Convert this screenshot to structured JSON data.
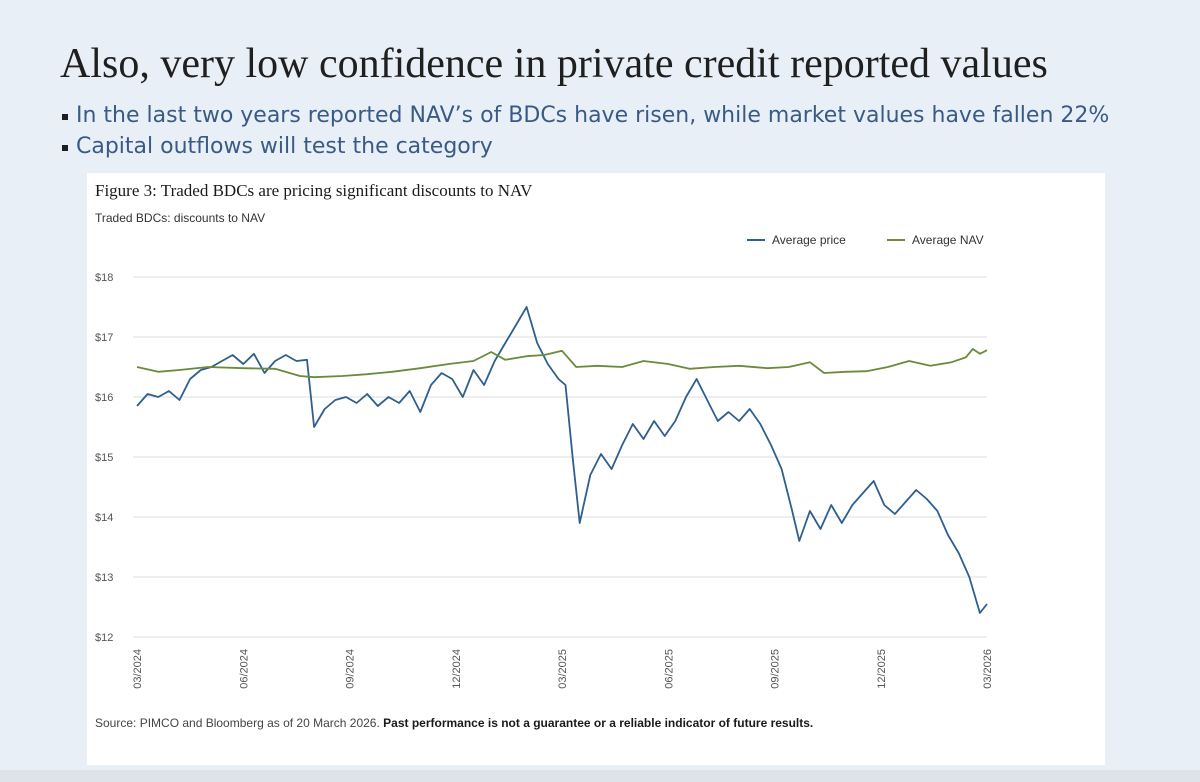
{
  "slide": {
    "title": "Also, very low confidence in private credit reported values",
    "bullets": [
      "In the last two years reported NAV’s of BDCs have risen, while market values have fallen 22%",
      "Capital outflows will test the category"
    ]
  },
  "colors": {
    "price": "#2e5f8f",
    "nav": "#6a8a3c",
    "grid": "#dcdcdc",
    "axis_text": "#555555"
  },
  "source": {
    "prefix": "Source: PIMCO and Bloomberg as of 20 March 2026.",
    "bold": "Past performance is not a guarantee or a reliable indicator of future results."
  },
  "chart_data": {
    "type": "line",
    "title": "Figure 3: Traded BDCs are pricing significant discounts to NAV",
    "subtitle": "Traded BDCs: discounts to NAV",
    "ylim": [
      12,
      18
    ],
    "y_ticks": [
      18,
      17,
      16,
      15,
      14,
      13,
      12
    ],
    "y_tick_labels": [
      "$18",
      "$17",
      "$16",
      "$15",
      "$14",
      "$13",
      "$12"
    ],
    "x_ticks": [
      0,
      3,
      6,
      9,
      12,
      15,
      18,
      21,
      24
    ],
    "x_tick_labels": [
      "03/2024",
      "06/2024",
      "09/2024",
      "12/2024",
      "03/2025",
      "06/2025",
      "09/2025",
      "12/2025",
      "03/2026"
    ],
    "x_unit": "months since 03/2024",
    "grid": "horizontal",
    "legend_position": "top-right",
    "series": [
      {
        "name": "Average price",
        "color": "#2e5f8f",
        "points": [
          [
            0.0,
            15.85
          ],
          [
            0.3,
            16.05
          ],
          [
            0.6,
            16.0
          ],
          [
            0.9,
            16.1
          ],
          [
            1.2,
            15.95
          ],
          [
            1.5,
            16.3
          ],
          [
            1.8,
            16.45
          ],
          [
            2.1,
            16.5
          ],
          [
            2.4,
            16.6
          ],
          [
            2.7,
            16.7
          ],
          [
            3.0,
            16.55
          ],
          [
            3.3,
            16.72
          ],
          [
            3.6,
            16.4
          ],
          [
            3.9,
            16.6
          ],
          [
            4.2,
            16.7
          ],
          [
            4.5,
            16.6
          ],
          [
            4.8,
            16.62
          ],
          [
            5.0,
            15.5
          ],
          [
            5.3,
            15.8
          ],
          [
            5.6,
            15.95
          ],
          [
            5.9,
            16.0
          ],
          [
            6.2,
            15.9
          ],
          [
            6.5,
            16.05
          ],
          [
            6.8,
            15.85
          ],
          [
            7.1,
            16.0
          ],
          [
            7.4,
            15.9
          ],
          [
            7.7,
            16.1
          ],
          [
            8.0,
            15.75
          ],
          [
            8.3,
            16.2
          ],
          [
            8.6,
            16.4
          ],
          [
            8.9,
            16.3
          ],
          [
            9.2,
            16.0
          ],
          [
            9.5,
            16.45
          ],
          [
            9.8,
            16.2
          ],
          [
            10.1,
            16.6
          ],
          [
            10.4,
            16.9
          ],
          [
            10.7,
            17.2
          ],
          [
            11.0,
            17.5
          ],
          [
            11.3,
            16.9
          ],
          [
            11.6,
            16.55
          ],
          [
            11.9,
            16.3
          ],
          [
            12.1,
            16.2
          ],
          [
            12.3,
            15.0
          ],
          [
            12.5,
            13.9
          ],
          [
            12.8,
            14.7
          ],
          [
            13.1,
            15.05
          ],
          [
            13.4,
            14.8
          ],
          [
            13.7,
            15.2
          ],
          [
            14.0,
            15.55
          ],
          [
            14.3,
            15.3
          ],
          [
            14.6,
            15.6
          ],
          [
            14.9,
            15.35
          ],
          [
            15.2,
            15.6
          ],
          [
            15.5,
            16.0
          ],
          [
            15.8,
            16.3
          ],
          [
            16.1,
            15.95
          ],
          [
            16.4,
            15.6
          ],
          [
            16.7,
            15.75
          ],
          [
            17.0,
            15.6
          ],
          [
            17.3,
            15.8
          ],
          [
            17.6,
            15.55
          ],
          [
            17.9,
            15.2
          ],
          [
            18.2,
            14.8
          ],
          [
            18.5,
            14.1
          ],
          [
            18.7,
            13.6
          ],
          [
            19.0,
            14.1
          ],
          [
            19.3,
            13.8
          ],
          [
            19.6,
            14.2
          ],
          [
            19.9,
            13.9
          ],
          [
            20.2,
            14.2
          ],
          [
            20.5,
            14.4
          ],
          [
            20.8,
            14.6
          ],
          [
            21.1,
            14.2
          ],
          [
            21.4,
            14.05
          ],
          [
            21.7,
            14.25
          ],
          [
            22.0,
            14.45
          ],
          [
            22.3,
            14.3
          ],
          [
            22.6,
            14.1
          ],
          [
            22.9,
            13.7
          ],
          [
            23.2,
            13.4
          ],
          [
            23.5,
            13.0
          ],
          [
            23.8,
            12.4
          ],
          [
            24.0,
            12.55
          ]
        ]
      },
      {
        "name": "Average NAV",
        "color": "#6a8a3c",
        "points": [
          [
            0.0,
            16.5
          ],
          [
            0.6,
            16.42
          ],
          [
            1.2,
            16.45
          ],
          [
            2.0,
            16.5
          ],
          [
            3.0,
            16.48
          ],
          [
            3.9,
            16.47
          ],
          [
            4.6,
            16.35
          ],
          [
            5.0,
            16.33
          ],
          [
            5.8,
            16.35
          ],
          [
            6.5,
            16.38
          ],
          [
            7.2,
            16.42
          ],
          [
            8.0,
            16.48
          ],
          [
            8.8,
            16.55
          ],
          [
            9.5,
            16.6
          ],
          [
            10.0,
            16.75
          ],
          [
            10.4,
            16.62
          ],
          [
            11.0,
            16.68
          ],
          [
            11.5,
            16.7
          ],
          [
            12.0,
            16.77
          ],
          [
            12.4,
            16.5
          ],
          [
            13.0,
            16.52
          ],
          [
            13.7,
            16.5
          ],
          [
            14.3,
            16.6
          ],
          [
            15.0,
            16.55
          ],
          [
            15.6,
            16.47
          ],
          [
            16.3,
            16.5
          ],
          [
            17.0,
            16.52
          ],
          [
            17.8,
            16.48
          ],
          [
            18.4,
            16.5
          ],
          [
            19.0,
            16.58
          ],
          [
            19.4,
            16.4
          ],
          [
            20.0,
            16.42
          ],
          [
            20.6,
            16.43
          ],
          [
            21.2,
            16.5
          ],
          [
            21.8,
            16.6
          ],
          [
            22.4,
            16.52
          ],
          [
            23.0,
            16.58
          ],
          [
            23.4,
            16.66
          ],
          [
            23.6,
            16.8
          ],
          [
            23.8,
            16.72
          ],
          [
            24.0,
            16.78
          ]
        ]
      }
    ]
  }
}
